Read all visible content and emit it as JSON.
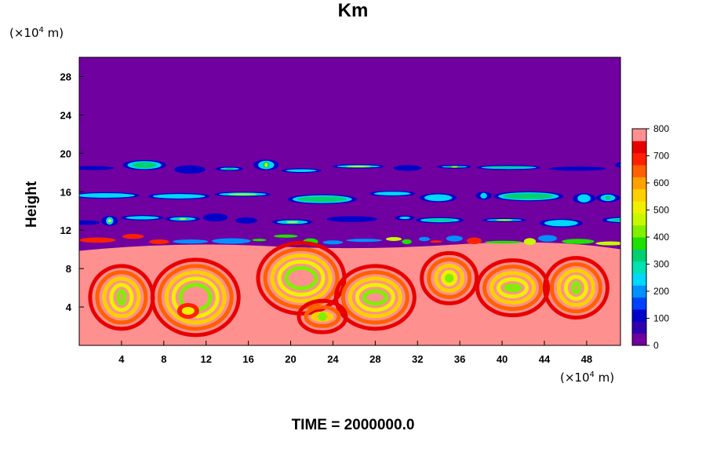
{
  "chart_data": {
    "type": "heatmap",
    "title": "Km",
    "ylabel": "Height",
    "y_unit_prefix": "(×10",
    "y_unit_exp": "4",
    "y_unit_suffix": " m)",
    "x_unit_prefix": "(×10",
    "x_unit_exp": "4",
    "x_unit_suffix": " m)",
    "footer": "TIME = 2000000.0",
    "xlim": [
      0,
      51.2
    ],
    "ylim": [
      0,
      30
    ],
    "x_ticks": [
      "4",
      "8",
      "12",
      "16",
      "20",
      "24",
      "28",
      "32",
      "36",
      "40",
      "44",
      "48"
    ],
    "y_ticks": [
      "4",
      "8",
      "12",
      "16",
      "20",
      "24",
      "28"
    ],
    "colorbar": {
      "min": 0,
      "max": 800,
      "labels": [
        "0",
        "100",
        "200",
        "300",
        "400",
        "500",
        "600",
        "700",
        "800"
      ],
      "colors": [
        "#7000a0",
        "#3000b0",
        "#0000c8",
        "#0040ff",
        "#0090ff",
        "#00d8ff",
        "#00e0b0",
        "#00d070",
        "#20e000",
        "#80f000",
        "#c8f800",
        "#f0f000",
        "#ffd000",
        "#ffa000",
        "#ff6000",
        "#ff2000",
        "#e80000",
        "#ff9090"
      ]
    },
    "fields": {
      "stratosphere": "0",
      "upper_bands_y": [
        18.5,
        15.5,
        13.0
      ],
      "upper_band_values": "100-500",
      "boundary_layer_top": 10.5,
      "boundary_layer_values": "600-800"
    }
  }
}
